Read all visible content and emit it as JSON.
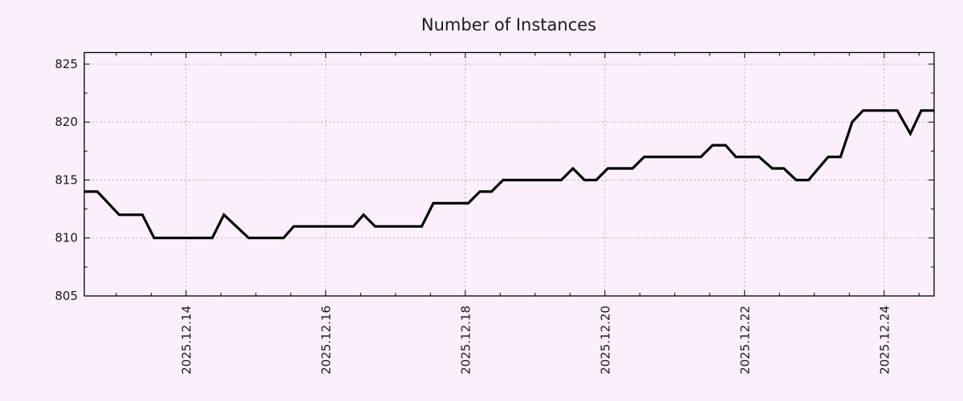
{
  "colors": {
    "background": "#fbeffb",
    "line": "#000000",
    "grid": "#9e9e9e",
    "axis": "#000000",
    "text": "#1a1a1a"
  },
  "chart_data": {
    "type": "line",
    "title": "Number of Instances",
    "xlabel": "",
    "ylabel": "",
    "grid": true,
    "legend_position": "none",
    "x_range": [
      "2025-12-12 13:00",
      "2025-12-24 17:10"
    ],
    "y_range": [
      805,
      826
    ],
    "y_ticks_major": [
      805,
      810,
      815,
      820,
      825
    ],
    "y_ticks_minor": [
      807.5,
      812.5,
      817.5,
      822.5
    ],
    "x_ticks_major": [
      {
        "date": "2025-12-14 00:00",
        "label": "2025.12.14"
      },
      {
        "date": "2025-12-16 00:00",
        "label": "2025.12.16"
      },
      {
        "date": "2025-12-18 00:00",
        "label": "2025.12.18"
      },
      {
        "date": "2025-12-20 00:00",
        "label": "2025.12.20"
      },
      {
        "date": "2025-12-22 00:00",
        "label": "2025.12.22"
      },
      {
        "date": "2025-12-24 00:00",
        "label": "2025.12.24"
      }
    ],
    "x_minor_tick_interval_hours": 12,
    "series": [
      {
        "name": "instances",
        "points": [
          {
            "t": "2025-12-12 13:00",
            "v": 814
          },
          {
            "t": "2025-12-12 17:30",
            "v": 814
          },
          {
            "t": "2025-12-13 01:00",
            "v": 812
          },
          {
            "t": "2025-12-13 09:00",
            "v": 812
          },
          {
            "t": "2025-12-13 13:00",
            "v": 810
          },
          {
            "t": "2025-12-14 09:00",
            "v": 810
          },
          {
            "t": "2025-12-14 13:00",
            "v": 812
          },
          {
            "t": "2025-12-14 21:30",
            "v": 810
          },
          {
            "t": "2025-12-15 09:30",
            "v": 810
          },
          {
            "t": "2025-12-15 13:00",
            "v": 811
          },
          {
            "t": "2025-12-16 09:30",
            "v": 811
          },
          {
            "t": "2025-12-16 13:00",
            "v": 812
          },
          {
            "t": "2025-12-16 17:00",
            "v": 811
          },
          {
            "t": "2025-12-17 09:00",
            "v": 811
          },
          {
            "t": "2025-12-17 13:00",
            "v": 813
          },
          {
            "t": "2025-12-18 01:00",
            "v": 813
          },
          {
            "t": "2025-12-18 05:00",
            "v": 814
          },
          {
            "t": "2025-12-18 09:00",
            "v": 814
          },
          {
            "t": "2025-12-18 13:00",
            "v": 815
          },
          {
            "t": "2025-12-19 09:00",
            "v": 815
          },
          {
            "t": "2025-12-19 13:00",
            "v": 816
          },
          {
            "t": "2025-12-19 17:00",
            "v": 815
          },
          {
            "t": "2025-12-19 21:00",
            "v": 815
          },
          {
            "t": "2025-12-20 01:00",
            "v": 816
          },
          {
            "t": "2025-12-20 09:30",
            "v": 816
          },
          {
            "t": "2025-12-20 13:30",
            "v": 817
          },
          {
            "t": "2025-12-21 09:00",
            "v": 817
          },
          {
            "t": "2025-12-21 13:00",
            "v": 818
          },
          {
            "t": "2025-12-21 17:30",
            "v": 818
          },
          {
            "t": "2025-12-21 21:00",
            "v": 817
          },
          {
            "t": "2025-12-22 05:00",
            "v": 817
          },
          {
            "t": "2025-12-22 09:30",
            "v": 816
          },
          {
            "t": "2025-12-22 13:30",
            "v": 816
          },
          {
            "t": "2025-12-22 17:45",
            "v": 815
          },
          {
            "t": "2025-12-22 22:00",
            "v": 815
          },
          {
            "t": "2025-12-23 04:45",
            "v": 817
          },
          {
            "t": "2025-12-23 09:00",
            "v": 817
          },
          {
            "t": "2025-12-23 13:00",
            "v": 820
          },
          {
            "t": "2025-12-23 16:45",
            "v": 821
          },
          {
            "t": "2025-12-24 04:30",
            "v": 821
          },
          {
            "t": "2025-12-24 09:00",
            "v": 819
          },
          {
            "t": "2025-12-24 12:45",
            "v": 821
          },
          {
            "t": "2025-12-24 17:10",
            "v": 821
          }
        ]
      }
    ]
  }
}
